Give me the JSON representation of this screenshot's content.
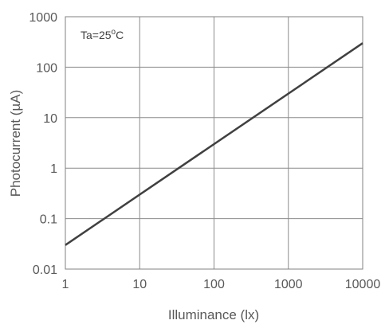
{
  "chart_data": {
    "type": "line",
    "x_scale": "log",
    "y_scale": "log",
    "xlim": [
      1,
      10000
    ],
    "ylim": [
      0.01,
      1000
    ],
    "x_ticks": [
      "1",
      "10",
      "100",
      "1000",
      "10000"
    ],
    "y_ticks": [
      "0.01",
      "0.1",
      "1",
      "10",
      "100",
      "1000"
    ],
    "xlabel": "Illuminance  (lx)",
    "ylabel": "Photocurrent  (µA)",
    "annotation": {
      "base": "Ta=25",
      "sup": "o",
      "suffix": "C"
    },
    "grid": true,
    "series": [
      {
        "x": [
          1,
          10000
        ],
        "y": [
          0.03,
          300
        ],
        "color": "#404040"
      }
    ]
  }
}
